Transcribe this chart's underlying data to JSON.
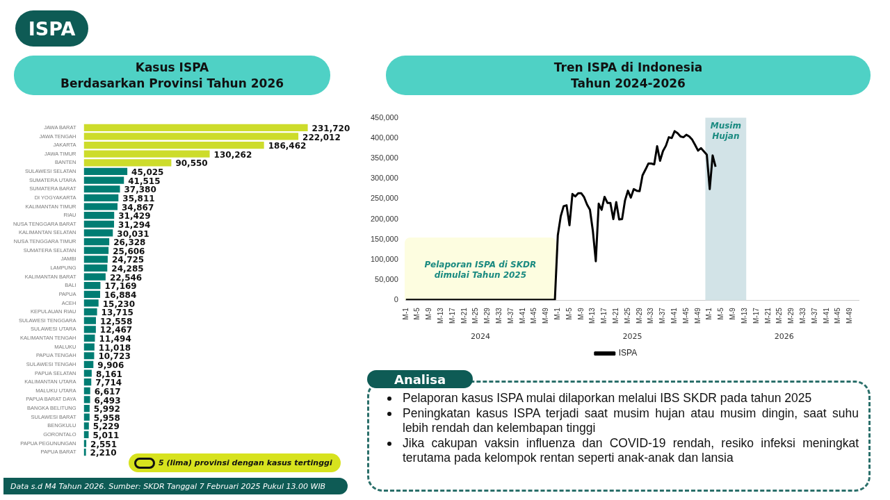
{
  "chart_data": [
    {
      "type": "other",
      "title": "ISPA"
    },
    {
      "type": "bar",
      "orientation": "horizontal",
      "title": "Kasus ISPA\nBerdasarkan Provinsi Tahun 2026",
      "categories": [
        "JAWA BARAT",
        "JAWA TENGAH",
        "JAKARTA",
        "JAWA TIMUR",
        "BANTEN",
        "SULAWESI SELATAN",
        "SUMATERA UTARA",
        "SUMATERA BARAT",
        "DI YOGYAKARTA",
        "KALIMANTAN TIMUR",
        "RIAU",
        "NUSA TENGGARA BARAT",
        "KALIMANTAN SELATAN",
        "NUSA TENGGARA TIMUR",
        "SUMATERA SELATAN",
        "JAMBI",
        "LAMPUNG",
        "KALIMANTAN BARAT",
        "BALI",
        "PAPUA",
        "ACEH",
        "KEPULAUAN RIAU",
        "SULAWESI TENGGARA",
        "SULAWESI UTARA",
        "KALIMANTAN TENGAH",
        "MALUKU",
        "PAPUA TENGAH",
        "SULAWESI TENGAH",
        "PAPUA SELATAN",
        "KALIMANTAN UTARA",
        "MALUKU UTARA",
        "PAPUA BARAT DAYA",
        "BANGKA BELITUNG",
        "SULAWESI BARAT",
        "BENGKULU",
        "GORONTALO",
        "PAPUA PEGUNUNGAN",
        "PAPUA BARAT"
      ],
      "values": [
        231720,
        222012,
        186462,
        130262,
        90550,
        45025,
        41515,
        37380,
        35811,
        34867,
        31429,
        31294,
        30031,
        26328,
        25606,
        24725,
        24285,
        22546,
        17169,
        16884,
        15230,
        13715,
        12558,
        12467,
        11494,
        11018,
        10723,
        9906,
        8161,
        7714,
        6617,
        6493,
        5992,
        5958,
        5229,
        5011,
        2551,
        2210
      ],
      "value_labels": [
        "231,720",
        "222,012",
        "186,462",
        "130,262",
        "90,550",
        "45,025",
        "41,515",
        "37,380",
        "35,811",
        "34,867",
        "31,429",
        "31,294",
        "30,031",
        "26,328",
        "25,606",
        "24,725",
        "24,285",
        "22,546",
        "17,169",
        "16,884",
        "15,230",
        "13,715",
        "12,558",
        "12,467",
        "11,494",
        "11,018",
        "10,723",
        "9,906",
        "8,161",
        "7,714",
        "6,617",
        "6,493",
        "5,992",
        "5,958",
        "5,229",
        "5,011",
        "2,551",
        "2,210"
      ],
      "colors": [
        "#cddc2b",
        "#cddc2b",
        "#cddc2b",
        "#cddc2b",
        "#cddc2b",
        "#007d73",
        "#007d73",
        "#007d73",
        "#007d73",
        "#007d73",
        "#007d73",
        "#007d73",
        "#007d73",
        "#007d73",
        "#007d73",
        "#007d73",
        "#007d73",
        "#007d73",
        "#007d73",
        "#007d73",
        "#007d73",
        "#007d73",
        "#007d73",
        "#007d73",
        "#007d73",
        "#007d73",
        "#007d73",
        "#007d73",
        "#007d73",
        "#007d73",
        "#007d73",
        "#007d73",
        "#007d73",
        "#007d73",
        "#007d73",
        "#007d73",
        "#007d73",
        "#007d73"
      ],
      "tick_labels": "y",
      "annotations": [
        "5 (lima) provinsi dengan kasus tertinggi",
        "Data s.d M4 Tahun 2026. Sumber: SKDR Tanggal 7 Februari 2025 Pukul 13.00 WIB"
      ]
    },
    {
      "type": "line",
      "title": "Tren ISPA di Indonesia\nTahun 2024-2026",
      "legend": "bottom",
      "marker": "none",
      "line_style": "solid",
      "grid": false,
      "categories": [
        "M-1",
        null,
        null,
        null,
        "M-5",
        null,
        null,
        null,
        "M-9",
        null,
        null,
        null,
        "M-13",
        null,
        null,
        null,
        "M-17",
        null,
        null,
        null,
        "M-21",
        null,
        null,
        null,
        "M-25",
        null,
        null,
        null,
        "M-29",
        null,
        null,
        null,
        "M-33",
        null,
        null,
        null,
        "M-37",
        null,
        null,
        null,
        "M-41",
        null,
        null,
        null,
        "M-45",
        null,
        null,
        null,
        "M-49",
        null,
        null,
        null,
        "M-1",
        null,
        null,
        null,
        "M-5",
        null,
        null,
        null,
        "M-9",
        null,
        null,
        null,
        "M-13",
        null,
        null,
        null,
        "M-17",
        null,
        null,
        null,
        "M-21",
        null,
        null,
        null,
        "M-25",
        null,
        null,
        null,
        "M-29",
        null,
        null,
        null,
        "M-33",
        null,
        null,
        null,
        "M-37",
        null,
        null,
        null,
        "M-41",
        null,
        null,
        null,
        "M-45",
        null,
        null,
        null,
        "M-49",
        null,
        null,
        null,
        "M-1",
        null,
        null,
        null,
        "M-5",
        null,
        null,
        null,
        "M-9",
        null,
        null,
        null,
        "M-13",
        null,
        null,
        null,
        "M-17",
        null,
        null,
        null,
        "M-21",
        null,
        null,
        null,
        "M-25",
        null,
        null,
        null,
        "M-29",
        null,
        null,
        null,
        "M-33",
        null,
        null,
        null,
        "M-37",
        null,
        null,
        null,
        "M-41",
        null,
        null,
        null,
        "M-45",
        null,
        null,
        null,
        "M-49",
        null,
        null,
        null
      ],
      "ylim": [
        0,
        450000
      ],
      "yticks": [
        0,
        {
          "value": 50000,
          "label": "50,000"
        },
        {
          "value": 100000,
          "label": "100,000"
        },
        {
          "value": 150000,
          "label": "150,000"
        },
        {
          "value": 200000,
          "label": "200,000"
        },
        {
          "value": 250000,
          "label": "250,000"
        },
        {
          "value": 300000,
          "label": "300,000"
        },
        {
          "value": 350000,
          "label": "350,000"
        },
        {
          "value": 400000,
          "label": "400,000"
        },
        {
          "value": 450000,
          "label": "450,000"
        }
      ],
      "annotations": [
        "Pelaporan ISPA di SKDR dimulai Tahun 2025",
        "Musim Hujan",
        "2024",
        "2025",
        "2026"
      ],
      "series": [
        {
          "name": "ISPA",
          "color": "#000000",
          "values": [
            1000,
            1000,
            1000,
            1000,
            1000,
            1000,
            1000,
            1000,
            1000,
            1000,
            1000,
            1000,
            1000,
            1000,
            1000,
            1000,
            1000,
            1000,
            1000,
            1000,
            1000,
            1000,
            1000,
            1000,
            1000,
            1000,
            1000,
            1000,
            1000,
            1000,
            1000,
            1000,
            1000,
            1000,
            1000,
            1000,
            1000,
            1000,
            1000,
            1000,
            1000,
            1000,
            1000,
            1000,
            1000,
            1000,
            1000,
            1000,
            1000,
            1000,
            1000,
            1000,
            160000,
            207000,
            232000,
            234000,
            185000,
            262000,
            256000,
            264000,
            264000,
            254000,
            236000,
            223000,
            171000,
            96000,
            238000,
            223000,
            255000,
            240000,
            240000,
            200000,
            242000,
            199000,
            200000,
            246000,
            270000,
            253000,
            274000,
            270000,
            269000,
            308000,
            322000,
            337000,
            337000,
            335000,
            380000,
            344000,
            368000,
            381000,
            402000,
            400000,
            417000,
            412000,
            404000,
            402000,
            408000,
            404000,
            396000,
            383000,
            369000,
            375000,
            367000,
            359000,
            274000,
            357000,
            329000,
            null,
            null,
            null,
            null,
            null,
            null,
            null,
            null,
            null,
            null,
            null,
            null,
            null,
            null,
            null,
            null,
            null,
            null,
            null,
            null,
            null,
            null,
            null,
            null,
            null,
            null,
            null,
            null,
            null,
            null,
            null,
            null,
            null,
            null,
            null,
            null,
            null,
            null,
            null,
            null,
            null,
            null,
            null,
            null,
            null,
            null,
            null,
            null,
            null
          ]
        }
      ]
    },
    {
      "type": "other",
      "title": "Analisa",
      "annotations": [
        "Pelaporan kasus ISPA mulai dilaporkan melalui IBS SKDR pada tahun 2025",
        "Peningkatan kasus ISPA terjadi saat musim hujan atau musim dingin, saat suhu lebih rendah dan kelembapan tinggi",
        "Jika cakupan vaksin influenza dan COVID-19 rendah, resiko infeksi meningkat terutama pada kelompok rentan seperti anak-anak dan lansia"
      ]
    }
  ]
}
